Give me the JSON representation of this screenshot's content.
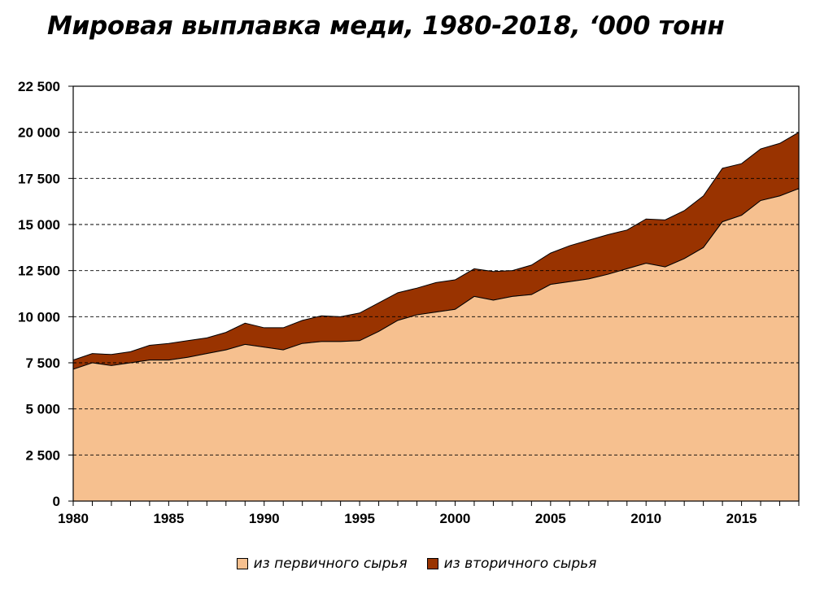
{
  "chart_data": {
    "type": "area",
    "stacked": true,
    "title": "Мировая выплавка меди, 1980-2018, ‘000 тонн",
    "xlabel": "",
    "ylabel": "",
    "x": [
      1980,
      1981,
      1982,
      1983,
      1984,
      1985,
      1986,
      1987,
      1988,
      1989,
      1990,
      1991,
      1992,
      1993,
      1994,
      1995,
      1996,
      1997,
      1998,
      1999,
      2000,
      2001,
      2002,
      2003,
      2004,
      2005,
      2006,
      2007,
      2008,
      2009,
      2010,
      2011,
      2012,
      2013,
      2014,
      2015,
      2016,
      2017,
      2018
    ],
    "x_ticks": [
      "1980",
      "1985",
      "1990",
      "1995",
      "2000",
      "2005",
      "2010",
      "2015"
    ],
    "y_ticks": [
      "0",
      "2 500",
      "5 000",
      "7 500",
      "10 000",
      "12 500",
      "15 000",
      "17 500",
      "20 000",
      "22 500"
    ],
    "ylim": [
      0,
      22500
    ],
    "grid": "horizontal dashed",
    "legend_position": "bottom",
    "series": [
      {
        "name": "из первичного сырья",
        "color": "#F6C08F",
        "values": [
          7150,
          7500,
          7350,
          7500,
          7650,
          7650,
          7800,
          8000,
          8200,
          8500,
          8350,
          8200,
          8550,
          8650,
          8650,
          8700,
          9200,
          9800,
          10100,
          10250,
          10400,
          11100,
          10900,
          11100,
          11200,
          11750,
          11900,
          12050,
          12300,
          12600,
          12900,
          12700,
          13150,
          13750,
          15150,
          15500,
          16300,
          16550,
          16950
        ]
      },
      {
        "name": "из вторичного сырья",
        "color": "#993300",
        "values": [
          500,
          500,
          600,
          600,
          800,
          900,
          900,
          850,
          950,
          1150,
          1050,
          1200,
          1250,
          1400,
          1350,
          1500,
          1550,
          1500,
          1450,
          1600,
          1600,
          1500,
          1550,
          1400,
          1600,
          1700,
          1950,
          2100,
          2150,
          2100,
          2400,
          2550,
          2600,
          2800,
          2900,
          2800,
          2800,
          2850,
          3050
        ]
      }
    ]
  }
}
